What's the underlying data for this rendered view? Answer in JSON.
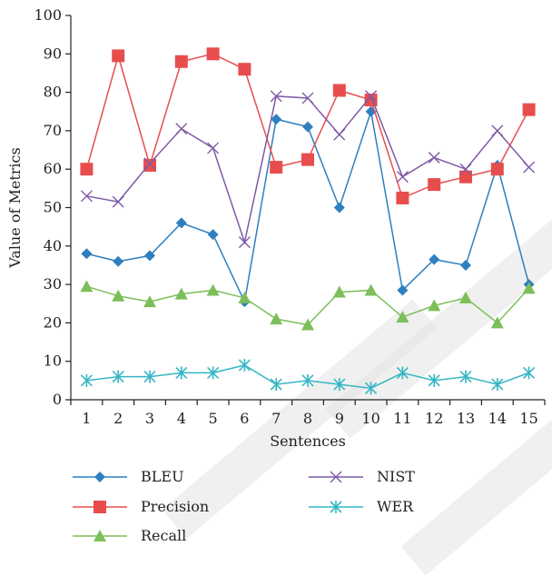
{
  "chart_data": {
    "type": "line",
    "xlabel": "Sentences",
    "ylabel": "Value of Metrics",
    "ylim": [
      0,
      100
    ],
    "yticks": [
      0,
      10,
      20,
      30,
      40,
      50,
      60,
      70,
      80,
      90,
      100
    ],
    "categories": [
      "1",
      "2",
      "3",
      "4",
      "5",
      "6",
      "7",
      "8",
      "9",
      "10",
      "11",
      "12",
      "13",
      "14",
      "15"
    ],
    "grid": false,
    "legend_position": "bottom",
    "series": [
      {
        "name": "BLEU",
        "color": "#2e7fbf",
        "marker": "diamond",
        "values": [
          38,
          36,
          37.5,
          46,
          43,
          25.5,
          73,
          71,
          50,
          75,
          28.5,
          36.5,
          35,
          61,
          30
        ]
      },
      {
        "name": "Precision",
        "color": "#e84d4d",
        "marker": "square",
        "values": [
          60,
          89.5,
          61,
          88,
          90,
          86,
          60.5,
          62.5,
          80.5,
          78,
          52.5,
          56,
          58,
          60,
          75.5
        ]
      },
      {
        "name": "Recall",
        "color": "#7cbf5a",
        "marker": "triangle",
        "values": [
          29.5,
          27,
          25.5,
          27.5,
          28.5,
          26.5,
          21,
          19.5,
          28,
          28.5,
          21.5,
          24.5,
          26.5,
          20,
          29
        ]
      },
      {
        "name": "NIST",
        "color": "#7e5aa6",
        "marker": "x",
        "values": [
          53,
          51.5,
          61.5,
          70.5,
          65.5,
          41,
          79,
          78.5,
          69,
          79,
          58,
          63,
          60,
          70,
          60.5
        ]
      },
      {
        "name": "WER",
        "color": "#35b6c4",
        "marker": "star",
        "values": [
          5,
          6,
          6,
          7,
          7,
          9,
          4,
          5,
          4,
          3,
          7,
          5,
          6,
          4,
          7
        ]
      }
    ]
  }
}
